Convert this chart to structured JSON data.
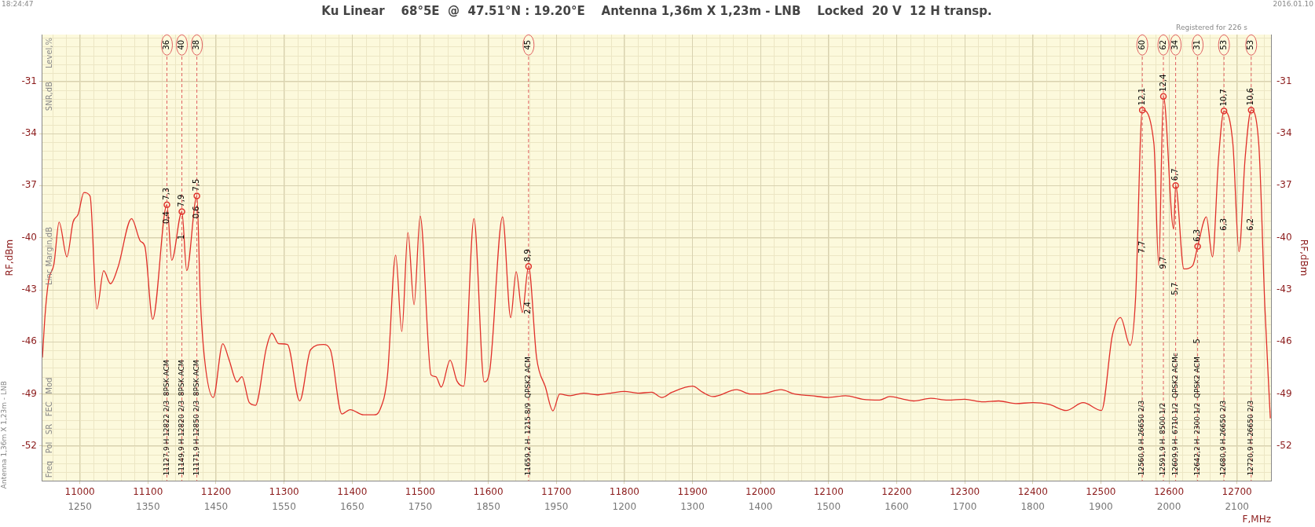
{
  "chart_data": {
    "type": "line",
    "title": "Ku Linear    68°5E  @  47.51°N : 19.20°E    Antenna 1,36m X 1,23m - LNB    Locked  20 V  12 H transp.",
    "xlabel": "F,MHz",
    "ylabel": "RF,dBm",
    "y2label": "RF,dBm",
    "xlim": [
      10945,
      12750
    ],
    "xticks": [
      11000,
      11100,
      11200,
      11300,
      11400,
      11500,
      11600,
      11700,
      11800,
      11900,
      12000,
      12100,
      12200,
      12300,
      12400,
      12500,
      12600,
      12700
    ],
    "ylim": [
      -54,
      -28.3
    ],
    "yticks": [
      -52,
      -49,
      -46,
      -43,
      -40,
      -37,
      -34,
      -31
    ],
    "y2lim": [
      -54,
      -28.3
    ],
    "y2ticks": [
      -52,
      -49,
      -46,
      -43,
      -40,
      -37,
      -34,
      -31
    ],
    "grid": true,
    "legend": false,
    "series": [
      {
        "color": "#e0302a",
        "marker": "none",
        "line_style": "solid",
        "x": [
          10945,
          10949,
          10954,
          10962,
          10969.5,
          10981,
          10990,
          10997.5,
          11006,
          11015,
          11025,
          11035,
          11045,
          11056,
          11076,
          11089,
          11095.5,
          11107,
          11127.9,
          11135,
          11149.9,
          11157,
          11171.9,
          11177,
          11183,
          11196,
          11210,
          11219,
          11231,
          11238,
          11249,
          11258,
          11274,
          11282,
          11292,
          11305,
          11323,
          11339,
          11358,
          11368,
          11385,
          11397,
          11417,
          11432,
          11441,
          11452,
          11464,
          11473,
          11482,
          11491,
          11500,
          11516,
          11523,
          11531,
          11544,
          11554,
          11564,
          11579,
          11594,
          11602,
          11621,
          11633,
          11641,
          11650,
          11659.2,
          11671,
          11684,
          11695,
          11705,
          11720,
          11740,
          11760,
          11780,
          11800,
          11820,
          11840,
          11855,
          11870,
          11900,
          11915,
          11930,
          11965,
          11985,
          12000,
          12030,
          12050,
          12075,
          12100,
          12125,
          12150,
          12175,
          12190,
          12210,
          12225,
          12250,
          12275,
          12300,
          12325,
          12350,
          12375,
          12400,
          12424,
          12449,
          12474,
          12501,
          12517,
          12529,
          12543,
          12551,
          12560.9,
          12578,
          12585,
          12591.9,
          12607,
          12609.9,
          12622,
          12635,
          12642.2,
          12655,
          12664,
          12673,
          12680.9,
          12694,
          12703,
          12712,
          12720.9,
          12732,
          12741,
          12749
        ],
        "values": [
          -46.9,
          -44.4,
          -42.5,
          -41.5,
          -39.1,
          -41.1,
          -39.1,
          -38.65,
          -37.4,
          -37.6,
          -44.1,
          -41.9,
          -42.65,
          -41.7,
          -38.9,
          -40.2,
          -40.5,
          -44.7,
          -38.1,
          -41.3,
          -38.5,
          -41.9,
          -37.6,
          -43.5,
          -46.9,
          -49.2,
          -46.1,
          -47.0,
          -48.3,
          -48.0,
          -49.5,
          -49.65,
          -46.35,
          -45.5,
          -46.1,
          -46.15,
          -49.4,
          -46.45,
          -46.15,
          -46.45,
          -50.15,
          -49.9,
          -50.2,
          -50.2,
          -49.9,
          -47.9,
          -41.0,
          -45.4,
          -39.7,
          -43.85,
          -38.75,
          -47.9,
          -48.0,
          -48.6,
          -47.05,
          -48.25,
          -48.55,
          -38.9,
          -48.3,
          -47.7,
          -38.8,
          -44.6,
          -41.95,
          -44.3,
          -41.65,
          -46.9,
          -48.6,
          -49.97,
          -49.0,
          -49.1,
          -48.95,
          -49.05,
          -48.95,
          -48.85,
          -48.95,
          -48.9,
          -49.2,
          -48.9,
          -48.55,
          -48.9,
          -49.15,
          -48.75,
          -49.0,
          -49.0,
          -48.75,
          -49.0,
          -49.1,
          -49.2,
          -49.1,
          -49.3,
          -49.35,
          -49.15,
          -49.3,
          -49.4,
          -49.25,
          -49.35,
          -49.3,
          -49.45,
          -49.4,
          -49.55,
          -49.5,
          -49.6,
          -49.95,
          -49.5,
          -49.95,
          -45.6,
          -44.6,
          -46.2,
          -43.5,
          -32.65,
          -34.6,
          -41.6,
          -31.86,
          -39.5,
          -37.0,
          -41.8,
          -41.6,
          -40.5,
          -38.8,
          -41.1,
          -35.4,
          -32.7,
          -34.6,
          -40.8,
          -35.4,
          -32.65,
          -34.6,
          -44.0,
          -50.4
        ]
      },
      {
        "type": "scatter",
        "color": "#e0302a",
        "marker": "circle",
        "x": [
          11127.9,
          11149.9,
          11171.9,
          11659.2,
          12560.9,
          12591.9,
          12609.9,
          12642.2,
          12680.9,
          12720.9
        ],
        "values": [
          -38.1,
          -38.5,
          -37.6,
          -41.65,
          -32.65,
          -31.86,
          -37.0,
          -40.5,
          -32.7,
          -32.65
        ]
      }
    ],
    "ref_lines": [
      {
        "axis": "x",
        "value": 11127.9,
        "color": "#e06060",
        "line_style": "dashed"
      },
      {
        "axis": "x",
        "value": 11149.9,
        "color": "#e06060",
        "line_style": "dashed"
      },
      {
        "axis": "x",
        "value": 11171.9,
        "color": "#e06060",
        "line_style": "dashed"
      },
      {
        "axis": "x",
        "value": 11659.2,
        "color": "#e06060",
        "line_style": "dashed"
      },
      {
        "axis": "x",
        "value": 12560.9,
        "color": "#e06060",
        "line_style": "dashed"
      },
      {
        "axis": "x",
        "value": 12591.9,
        "color": "#e06060",
        "line_style": "dashed"
      },
      {
        "axis": "x",
        "value": 12609.9,
        "color": "#e06060",
        "line_style": "dashed"
      },
      {
        "axis": "x",
        "value": 12642.2,
        "color": "#e06060",
        "line_style": "dashed"
      },
      {
        "axis": "x",
        "value": 12680.9,
        "color": "#e06060",
        "line_style": "dashed"
      },
      {
        "axis": "x",
        "value": 12720.9,
        "color": "#e06060",
        "line_style": "dashed"
      }
    ],
    "annotations": [
      "18:24:47",
      "2016.01.10",
      "Registered for 226 s",
      "Level,%",
      "SNR,dB",
      "Linc Margin,dB",
      "Freq   Pol   SR   FEC   Mod",
      "Antenna 1,36m X 1,23m - LNB",
      {
        "text": "36",
        "x": 11127.9,
        "y": -28.9
      },
      {
        "text": "40",
        "x": 11149.9,
        "y": -28.9
      },
      {
        "text": "38",
        "x": 11171.9,
        "y": -28.9
      },
      {
        "text": "45",
        "x": 11659.2,
        "y": -28.9
      },
      {
        "text": "60",
        "x": 12560.9,
        "y": -28.9
      },
      {
        "text": "62",
        "x": 12591.9,
        "y": -28.9
      },
      {
        "text": "34",
        "x": 12609.9,
        "y": -28.9
      },
      {
        "text": "31",
        "x": 12642.2,
        "y": -28.9
      },
      {
        "text": "53",
        "x": 12680.9,
        "y": -28.9
      },
      {
        "text": "53",
        "x": 12720.9,
        "y": -28.9
      },
      {
        "text": "7,3",
        "x": 11127.9,
        "y": -38.1
      },
      {
        "text": "7,9",
        "x": 11149.9,
        "y": -38.5
      },
      {
        "text": "7,5",
        "x": 11171.9,
        "y": -37.6
      },
      {
        "text": "8,9",
        "x": 11659.2,
        "y": -41.65
      },
      {
        "text": "12,1",
        "x": 12560.9,
        "y": -32.65
      },
      {
        "text": "12,4",
        "x": 12591.9,
        "y": -31.86
      },
      {
        "text": "6,7",
        "x": 12609.9,
        "y": -37.0
      },
      {
        "text": "6,3",
        "x": 12642.2,
        "y": -40.5
      },
      {
        "text": "10,7",
        "x": 12680.9,
        "y": -32.7
      },
      {
        "text": "10,6",
        "x": 12720.9,
        "y": -32.65
      },
      "1250",
      "1350",
      "1450",
      "1550",
      "1650",
      "1750",
      "1850",
      "1950",
      "1200",
      "1300",
      "1400",
      "1500",
      "1600",
      "1700",
      "1800",
      "1900",
      "2000",
      "2100",
      {
        "text": "0,4",
        "x": 11127.9,
        "y": -39.2
      },
      {
        "text": "1",
        "x": 11149.9,
        "y": -40.1
      },
      {
        "text": "0,6",
        "x": 11171.9,
        "y": -38.9
      },
      {
        "text": "2,4",
        "x": 11659.2,
        "y": -44.4
      },
      {
        "text": "7,7",
        "x": 12560.9,
        "y": -40.9
      },
      {
        "text": "9,7",
        "x": 12591.9,
        "y": -41.8
      },
      {
        "text": "5,7",
        "x": 12609.9,
        "y": -43.3
      },
      {
        "text": "5",
        "x": 12642.2,
        "y": -46.1
      },
      {
        "text": "6,3",
        "x": 12680.9,
        "y": -39.6
      },
      {
        "text": "6,2",
        "x": 12720.9,
        "y": -39.6
      },
      {
        "text": "11127,9 H 12822 2/3  8PSK ACM",
        "x": 11127.9,
        "y": -53.7
      },
      {
        "text": "11149,9 H 12820 2/3  8PSK ACM",
        "x": 11149.9,
        "y": -53.7
      },
      {
        "text": "11171,9 H 12850 2/3  8PSK ACM",
        "x": 11171.9,
        "y": -53.7
      },
      {
        "text": "11659,2 H  1215 8/9  QPSK2 ACM",
        "x": 11659.2,
        "y": -53.7
      },
      {
        "text": "12560,9 H 26650 2/3",
        "x": 12560.9,
        "y": -53.7
      },
      {
        "text": "12591,9 H  8500 1/2",
        "x": 12591.9,
        "y": -53.7
      },
      {
        "text": "12609,9 H  6710 1/2  QPSK2 ACMc",
        "x": 12609.9,
        "y": -53.7
      },
      {
        "text": "12642,2 H  2300 1/2  QPSK2 ACM",
        "x": 12642.2,
        "y": -53.7
      },
      {
        "text": "12680,9 H 26650 2/3",
        "x": 12680.9,
        "y": -53.7
      },
      {
        "text": "12720,9 H 26650 2/3",
        "x": 12720.9,
        "y": -53.7
      }
    ]
  }
}
